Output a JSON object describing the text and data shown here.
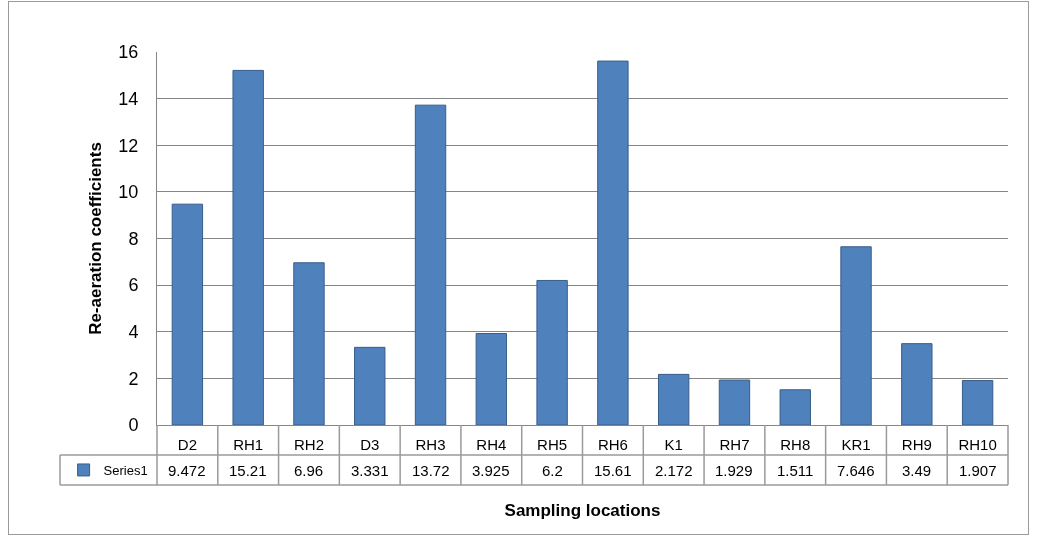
{
  "chart_data": {
    "type": "bar",
    "xlabel": "Sampling locations",
    "ylabel": "Re-aeration coefficients",
    "categories": [
      "D2",
      "RH1",
      "RH2",
      "D3",
      "RH3",
      "RH4",
      "RH5",
      "RH6",
      "K1",
      "RH7",
      "RH8",
      "KR1",
      "RH9",
      "RH10"
    ],
    "series": [
      {
        "name": "Series1",
        "color": "#4f81bd",
        "values": [
          9.472,
          15.21,
          6.96,
          3.331,
          13.72,
          3.925,
          6.2,
          15.61,
          2.172,
          1.929,
          1.511,
          7.646,
          3.49,
          1.907
        ]
      }
    ],
    "ylim": [
      0,
      16
    ],
    "yticks": [
      0,
      2,
      4,
      6,
      8,
      10,
      12,
      14,
      16
    ],
    "grid": "y",
    "legend": "bottom left",
    "data_labels": true
  }
}
